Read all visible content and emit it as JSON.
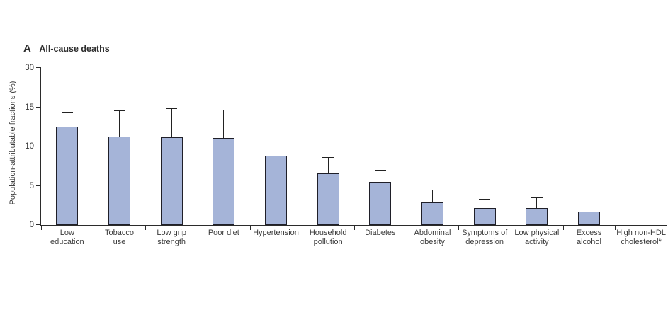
{
  "figure": {
    "panel_letter": "A",
    "panel_title": "All-cause deaths"
  },
  "chart_data": {
    "type": "bar",
    "panel": "A",
    "title": "All-cause deaths",
    "xlabel": "",
    "ylabel": "Population-attributable fractions (%)",
    "categories": [
      "Low education",
      "Tobacco use",
      "Low grip strength",
      "Poor diet",
      "Hypertension",
      "Household pollution",
      "Diabetes",
      "Abdominal obesity",
      "Symptoms of depression",
      "Low physical activity",
      "Excess alcohol",
      "High non-HDL cholesterol*"
    ],
    "category_label_lines": [
      [
        "Low",
        "education"
      ],
      [
        "Tobacco",
        "use"
      ],
      [
        "Low grip",
        "strength"
      ],
      [
        "Poor diet"
      ],
      [
        "Hypertension"
      ],
      [
        "Household",
        "pollution"
      ],
      [
        "Diabetes"
      ],
      [
        "Abdominal",
        "obesity"
      ],
      [
        "Symptoms of",
        "depression"
      ],
      [
        "Low physical",
        "activity"
      ],
      [
        "Excess",
        "alcohol"
      ],
      [
        "High non-HDL",
        "cholesterol*"
      ]
    ],
    "values": [
      12.5,
      11.3,
      11.2,
      11.1,
      8.8,
      6.6,
      5.5,
      2.9,
      2.2,
      2.2,
      1.7,
      0
    ],
    "error_upper": [
      14.3,
      14.5,
      14.8,
      14.6,
      10.0,
      8.6,
      6.9,
      4.4,
      3.2,
      3.4,
      2.9,
      null
    ],
    "y_tick_labels_top_to_bottom": [
      "30",
      "15",
      "10",
      "5",
      "0"
    ],
    "axis_note": "y ticks evenly spaced; linear 0-15 below top tick labeled 30",
    "linear_ylim": [
      0,
      15
    ],
    "grid": false,
    "legend": null,
    "colors": {
      "bar_fill": "#a5b4d8",
      "bar_border": "#1f1f28",
      "axis": "#2b2b2b",
      "text": "#3a3a3a"
    }
  }
}
